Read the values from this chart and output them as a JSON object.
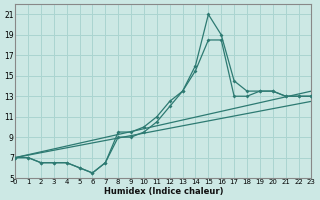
{
  "xlabel": "Humidex (Indice chaleur)",
  "bg_color": "#cce8e4",
  "grid_color": "#aad4d0",
  "line_color": "#2d7a72",
  "xlim": [
    0,
    23
  ],
  "ylim": [
    5,
    22
  ],
  "xticks": [
    0,
    1,
    2,
    3,
    4,
    5,
    6,
    7,
    8,
    9,
    10,
    11,
    12,
    13,
    14,
    15,
    16,
    17,
    18,
    19,
    20,
    21,
    22,
    23
  ],
  "yticks": [
    5,
    7,
    9,
    11,
    13,
    15,
    17,
    19,
    21
  ],
  "curve1_x": [
    0,
    1,
    2,
    3,
    4,
    5,
    6,
    7,
    8,
    9,
    10,
    11,
    12,
    13,
    14,
    15,
    16,
    17,
    18,
    19,
    20,
    21,
    22,
    23
  ],
  "curve1_y": [
    7,
    7,
    6.5,
    6.5,
    6.5,
    6.0,
    5.5,
    6.5,
    9.5,
    9.5,
    10.0,
    11.0,
    12.5,
    13.5,
    16.0,
    21.0,
    19.0,
    14.5,
    13.5,
    13.5,
    13.5,
    13.0,
    13.0,
    13.0
  ],
  "curve2_x": [
    0,
    1,
    2,
    3,
    4,
    5,
    6,
    7,
    8,
    9,
    10,
    11,
    12,
    13,
    14,
    15,
    16,
    17,
    18,
    19,
    20,
    21,
    22,
    23
  ],
  "curve2_y": [
    7,
    7,
    6.5,
    6.5,
    6.5,
    6.0,
    5.5,
    6.5,
    9.0,
    9.0,
    9.5,
    10.5,
    12.0,
    13.5,
    15.5,
    18.5,
    18.5,
    13.0,
    13.0,
    13.5,
    13.5,
    13.0,
    13.0,
    13.0
  ],
  "line1_x": [
    0,
    23
  ],
  "line1_y": [
    7,
    13.5
  ],
  "line2_x": [
    0,
    23
  ],
  "line2_y": [
    7,
    12.5
  ]
}
